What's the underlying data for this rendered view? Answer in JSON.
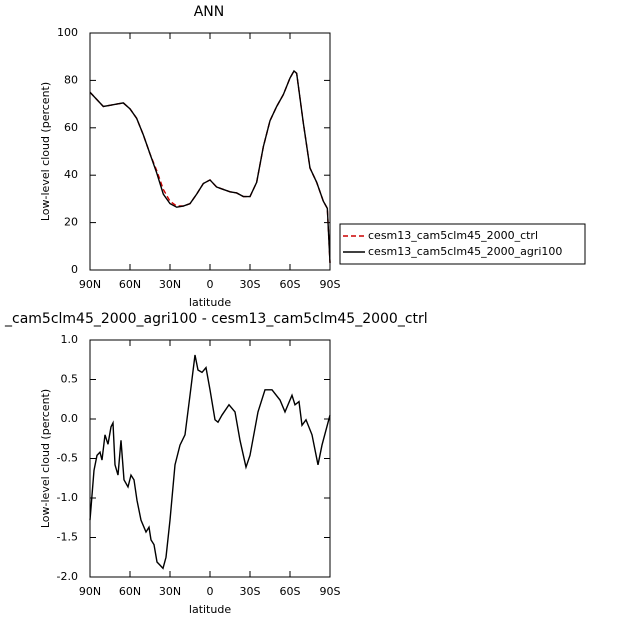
{
  "chart_data": [
    {
      "type": "line",
      "title": "ANN",
      "xlabel": "latitude",
      "ylabel": "Low-level cloud (percent)",
      "xlim": [
        90,
        -90
      ],
      "ylim": [
        0,
        100
      ],
      "xticks": [
        {
          "value": 90,
          "label": "90N"
        },
        {
          "value": 60,
          "label": "60N"
        },
        {
          "value": 30,
          "label": "30N"
        },
        {
          "value": 0,
          "label": "0"
        },
        {
          "value": -30,
          "label": "30S"
        },
        {
          "value": -60,
          "label": "60S"
        },
        {
          "value": -90,
          "label": "90S"
        }
      ],
      "yticks": [
        0,
        20,
        40,
        60,
        80,
        100
      ],
      "legend": "right",
      "x": [
        90,
        85,
        80,
        75,
        70,
        65,
        60,
        55,
        50,
        45,
        40,
        35,
        30,
        25,
        20,
        15,
        10,
        5,
        0,
        -5,
        -10,
        -15,
        -20,
        -25,
        -30,
        -35,
        -40,
        -45,
        -50,
        -55,
        -60,
        -63,
        -65,
        -70,
        -75,
        -80,
        -85,
        -88,
        -90
      ],
      "series": [
        {
          "name": "cesm13_cam5clm45_2000_ctrl",
          "color": "#cc0000",
          "dashed": true,
          "values": [
            75,
            72,
            69,
            69.5,
            70,
            70.5,
            68,
            64,
            57,
            49,
            42,
            34,
            29,
            27,
            27,
            28,
            32,
            36.5,
            38,
            35,
            34,
            33,
            32.5,
            31,
            31,
            37,
            52,
            63,
            69,
            74,
            81,
            84,
            83,
            62,
            43,
            37,
            29,
            26,
            3
          ]
        },
        {
          "name": "cesm13_cam5clm45_2000_agri100",
          "color": "#000000",
          "dashed": false,
          "values": [
            75,
            72,
            69,
            69.5,
            70,
            70.5,
            68,
            64,
            57,
            49,
            41,
            32,
            28,
            26.5,
            27,
            28,
            32,
            36.5,
            38,
            35,
            34,
            33,
            32.5,
            31,
            31,
            37,
            52,
            63,
            69,
            74,
            81,
            84,
            83,
            62,
            43,
            37,
            29,
            26,
            3
          ]
        }
      ]
    },
    {
      "type": "line",
      "title": "_cam5clm45_2000_agri100 - cesm13_cam5clm45_2000_ctrl",
      "xlabel": "latitude",
      "ylabel": "Low-level cloud (percent)",
      "xlim": [
        90,
        -90
      ],
      "ylim": [
        -2,
        1
      ],
      "xticks": [
        {
          "value": 90,
          "label": "90N"
        },
        {
          "value": 60,
          "label": "60N"
        },
        {
          "value": 30,
          "label": "30N"
        },
        {
          "value": 0,
          "label": "0"
        },
        {
          "value": -30,
          "label": "30S"
        },
        {
          "value": -60,
          "label": "60S"
        },
        {
          "value": -90,
          "label": "90S"
        }
      ],
      "yticks": [
        {
          "value": -2,
          "label": "-2.0"
        },
        {
          "value": -1.5,
          "label": "-1.5"
        },
        {
          "value": -1,
          "label": "-1.0"
        },
        {
          "value": -0.5,
          "label": "-0.5"
        },
        {
          "value": 0,
          "label": "0.0"
        },
        {
          "value": 0.5,
          "label": "0.5"
        },
        {
          "value": 1,
          "label": "1.0"
        }
      ],
      "x": [
        90,
        87,
        84.75,
        82.5,
        81,
        78.75,
        76.5,
        74.25,
        72.75,
        71.25,
        69,
        66.75,
        64.5,
        61.5,
        59.25,
        57,
        54.75,
        51.75,
        48,
        45.75,
        44.25,
        42,
        39.75,
        37.5,
        35.25,
        33,
        30,
        26.25,
        22.5,
        18.75,
        15,
        11.25,
        9,
        6,
        3,
        0,
        -3.75,
        -6,
        -9,
        -14.25,
        -18.75,
        -22.5,
        -27,
        -30,
        -36,
        -41.25,
        -46.5,
        -52.5,
        -56.25,
        -58.5,
        -61.5,
        -63.75,
        -66.75,
        -69,
        -72,
        -76.5,
        -81,
        -84,
        -90
      ],
      "series": [
        {
          "color": "#000000",
          "dashed": false,
          "values": [
            -1.28,
            -0.65,
            -0.46,
            -0.42,
            -0.52,
            -0.2,
            -0.32,
            -0.1,
            -0.05,
            -0.58,
            -0.71,
            -0.27,
            -0.77,
            -0.86,
            -0.71,
            -0.77,
            -1.03,
            -1.28,
            -1.43,
            -1.37,
            -1.53,
            -1.59,
            -1.81,
            -1.85,
            -1.89,
            -1.75,
            -1.28,
            -0.58,
            -0.33,
            -0.2,
            0.3,
            0.81,
            0.62,
            0.59,
            0.65,
            0.37,
            -0.01,
            -0.04,
            0.05,
            0.18,
            0.09,
            -0.27,
            -0.61,
            -0.46,
            0.09,
            0.37,
            0.37,
            0.24,
            0.09,
            0.18,
            0.3,
            0.18,
            0.22,
            -0.08,
            -0.01,
            -0.2,
            -0.58,
            -0.33,
            0.05
          ]
        }
      ]
    }
  ]
}
